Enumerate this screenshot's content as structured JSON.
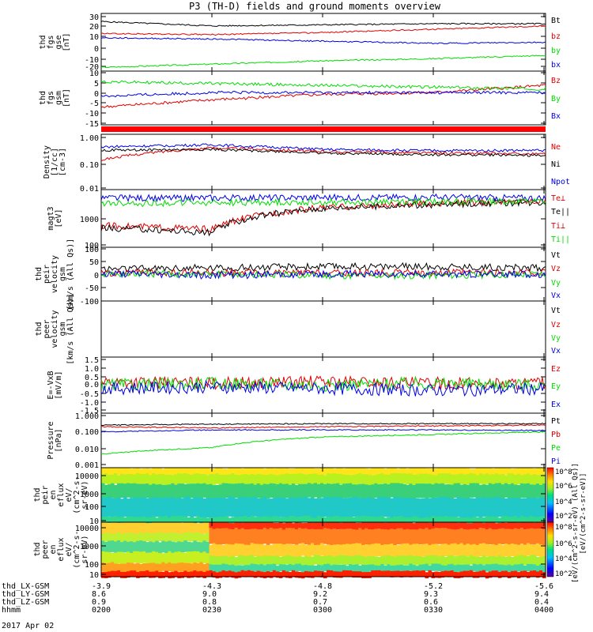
{
  "title": "P3 (TH-D) fields and ground moments overview",
  "colors": {
    "black": "#000000",
    "red": "#e00000",
    "green": "#00dd00",
    "blue": "#0000e6"
  },
  "panels": [
    {
      "id": "p1",
      "ylabel": [
        "thd",
        "fgs",
        "gse",
        "[nT]"
      ],
      "ticks": [
        "30",
        "20",
        "10",
        "0",
        "-10",
        "-20"
      ],
      "legend": [
        {
          "text": "Bt",
          "color": "#000000"
        },
        {
          "text": "bz",
          "color": "#e00000"
        },
        {
          "text": "by",
          "color": "#00dd00"
        },
        {
          "text": "bx",
          "color": "#0000e6"
        }
      ]
    },
    {
      "id": "p2",
      "ylabel": [
        "thd",
        "fgs",
        "gsm",
        "[nT]"
      ],
      "ticks": [
        "10",
        "5",
        "0",
        "-5",
        "-10",
        "-15"
      ],
      "legend": [
        {
          "text": "Bz",
          "color": "#e00000"
        },
        {
          "text": "By",
          "color": "#00dd00"
        },
        {
          "text": "Bx",
          "color": "#0000e6"
        }
      ]
    },
    {
      "id": "p3",
      "ylabel": [
        "Density",
        "[1/cc]",
        "[cm-3]"
      ],
      "ticks": [
        "1.00",
        "0.10",
        "0.01"
      ],
      "legend": [
        {
          "text": "Ne",
          "color": "#e00000"
        },
        {
          "text": "Ni",
          "color": "#000000"
        },
        {
          "text": "Npot",
          "color": "#0000e6"
        }
      ]
    },
    {
      "id": "p4",
      "ylabel": [
        "magt3",
        "[eV]"
      ],
      "ticks": [
        "1000",
        "100"
      ],
      "legend": [
        {
          "text": "Te⊥",
          "color": "#e00000"
        },
        {
          "text": "Te||",
          "color": "#000000"
        },
        {
          "text": "Ti⊥",
          "color": "#e00000"
        },
        {
          "text": "Ti||",
          "color": "#00dd00"
        }
      ]
    },
    {
      "id": "p5",
      "ylabel": [
        "thd",
        "peir",
        "velocity",
        "gsm",
        "[km/s (All Qs)]"
      ],
      "ticks": [
        "100",
        "50",
        "0",
        "-50",
        "-100"
      ],
      "legend": [
        {
          "text": "Vt",
          "color": "#000000"
        },
        {
          "text": "Vz",
          "color": "#e00000"
        },
        {
          "text": "Vy",
          "color": "#00dd00"
        },
        {
          "text": "Vx",
          "color": "#0000e6"
        }
      ]
    },
    {
      "id": "p6",
      "ylabel": [
        "thd",
        "peer",
        "velocity",
        "gsm",
        "[km/s (All Qs)]"
      ],
      "ticks": [],
      "legend": [
        {
          "text": "Vt",
          "color": "#000000"
        },
        {
          "text": "Vz",
          "color": "#e00000"
        },
        {
          "text": "Vy",
          "color": "#00dd00"
        },
        {
          "text": "Vx",
          "color": "#0000e6"
        }
      ]
    },
    {
      "id": "p7",
      "ylabel": [
        "E=-VxB",
        "[mV/m]"
      ],
      "ticks": [
        "1.5",
        "1.0",
        "0.5",
        "0.0",
        "-0.5",
        "-1.0",
        "-1.5"
      ],
      "legend": [
        {
          "text": "Ez",
          "color": "#e00000"
        },
        {
          "text": "Ey",
          "color": "#00dd00"
        },
        {
          "text": "Ex",
          "color": "#0000e6"
        }
      ]
    },
    {
      "id": "p8",
      "ylabel": [
        "Pressure",
        "[nPa]"
      ],
      "ticks": [
        "1.000",
        "0.100",
        "0.010",
        "0.001"
      ],
      "legend": [
        {
          "text": "Pt",
          "color": "#000000"
        },
        {
          "text": "Pb",
          "color": "#e00000"
        },
        {
          "text": "Pe",
          "color": "#00dd00"
        },
        {
          "text": "Pi",
          "color": "#0000e6"
        }
      ]
    },
    {
      "id": "p9",
      "ylabel": [
        "thd",
        "peir",
        "en",
        "eflux",
        "eV/",
        "(cm^2-s-",
        "sr-eV)"
      ],
      "ticks": [
        "10000",
        "1000",
        "100",
        "10"
      ],
      "legend": []
    },
    {
      "id": "p10",
      "ylabel": [
        "thd",
        "peer",
        "en",
        "eflux",
        "eV/",
        "(cm^2-s-",
        "sr-eV)"
      ],
      "ticks": [
        "10000",
        "1000",
        "100",
        "10"
      ],
      "legend": []
    }
  ],
  "colorbar": {
    "ticks1": [
      "10^8",
      "10^6",
      "10^4",
      "10^2"
    ],
    "ticks2": [
      "10^8",
      "10^6",
      "10^4",
      "10^2"
    ],
    "label1": "[eV/(cm^2-s-sr-eV)]",
    "label2": "[eV/(cm^2-s-sr-eV) (All Qs)]"
  },
  "xaxis": {
    "rows": [
      {
        "label": "thd_LX-GSM",
        "values": [
          "-3.9",
          "-4.3",
          "-4.8",
          "-5.2",
          "-5.6"
        ]
      },
      {
        "label": "thd_LY-GSM",
        "values": [
          "8.6",
          "9.0",
          "9.2",
          "9.3",
          "9.4"
        ]
      },
      {
        "label": "thd_LZ-GSM",
        "values": [
          "0.9",
          "0.8",
          "0.7",
          "0.6",
          "0.4"
        ]
      },
      {
        "label": "hhmm",
        "values": [
          "0200",
          "0230",
          "0300",
          "0330",
          "0400"
        ]
      }
    ],
    "date": "2017 Apr 02"
  },
  "chart_data": {
    "type": "line",
    "title": "P3 (TH-D) fields and ground moments overview",
    "x": [
      "0200",
      "0230",
      "0300",
      "0330",
      "0400"
    ],
    "xlabel": "hhmm",
    "series": [
      {
        "panel": "p1",
        "name": "Bt",
        "values": [
          24,
          20,
          21,
          22,
          22
        ],
        "ylim": [
          -20,
          30
        ]
      },
      {
        "panel": "p1",
        "name": "bz",
        "values": [
          13,
          12,
          14,
          17,
          20
        ],
        "ylim": [
          -20,
          30
        ]
      },
      {
        "panel": "p1",
        "name": "by",
        "values": [
          -18,
          -15,
          -12,
          -10,
          -7
        ],
        "ylim": [
          -20,
          30
        ]
      },
      {
        "panel": "p1",
        "name": "bx",
        "values": [
          9,
          8,
          6,
          4,
          5
        ],
        "ylim": [
          -20,
          30
        ]
      },
      {
        "panel": "p2",
        "name": "Bz",
        "values": [
          -9,
          -5,
          -2,
          -1,
          3
        ],
        "ylim": [
          -18,
          10
        ]
      },
      {
        "panel": "p2",
        "name": "By",
        "values": [
          5,
          4,
          3,
          2,
          1
        ],
        "ylim": [
          -18,
          10
        ]
      },
      {
        "panel": "p2",
        "name": "Bx",
        "values": [
          -3,
          -1,
          -1,
          -1,
          -1
        ],
        "ylim": [
          -18,
          10
        ]
      },
      {
        "panel": "p3",
        "name": "Ne",
        "values": [
          0.12,
          0.35,
          0.25,
          0.22,
          0.2
        ],
        "ylim": [
          0.01,
          1.0
        ],
        "scale": "log"
      },
      {
        "panel": "p3",
        "name": "Ni",
        "values": [
          0.28,
          0.3,
          0.22,
          0.19,
          0.18
        ],
        "ylim": [
          0.01,
          1.0
        ],
        "scale": "log"
      },
      {
        "panel": "p3",
        "name": "Npot",
        "values": [
          0.38,
          0.45,
          0.3,
          0.27,
          0.28
        ],
        "ylim": [
          0.01,
          1.0
        ],
        "scale": "log"
      },
      {
        "panel": "p4",
        "name": "Te⊥",
        "values": [
          550,
          400,
          2500,
          3500,
          4500
        ],
        "ylim": [
          100,
          10000
        ],
        "scale": "log"
      },
      {
        "panel": "p4",
        "name": "Te||",
        "values": [
          450,
          300,
          2400,
          3200,
          4000
        ],
        "ylim": [
          100,
          10000
        ],
        "scale": "log"
      },
      {
        "panel": "p4",
        "name": "Ti⊥",
        "values": [
          5500,
          5600,
          5800,
          5900,
          5600
        ],
        "ylim": [
          100,
          10000
        ],
        "scale": "log"
      },
      {
        "panel": "p4",
        "name": "Ti||",
        "values": [
          3500,
          3800,
          4000,
          4200,
          4300
        ],
        "ylim": [
          100,
          10000
        ],
        "scale": "log"
      },
      {
        "panel": "p5",
        "name": "Vt",
        "values": [
          20,
          25,
          30,
          30,
          25
        ],
        "ylim": [
          -100,
          100
        ]
      },
      {
        "panel": "p5",
        "name": "Vz",
        "values": [
          5,
          5,
          5,
          5,
          5
        ],
        "ylim": [
          -100,
          100
        ]
      },
      {
        "panel": "p5",
        "name": "Vy",
        "values": [
          0,
          0,
          -5,
          -5,
          0
        ],
        "ylim": [
          -100,
          100
        ]
      },
      {
        "panel": "p5",
        "name": "Vx",
        "values": [
          0,
          -5,
          0,
          0,
          0
        ],
        "ylim": [
          -100,
          100
        ]
      },
      {
        "panel": "p7",
        "name": "Ez",
        "values": [
          0.2,
          0.1,
          0.2,
          0.1,
          0.1
        ],
        "ylim": [
          -1.5,
          1.5
        ]
      },
      {
        "panel": "p7",
        "name": "Ey",
        "values": [
          0.0,
          0.1,
          0.0,
          0.1,
          0.0
        ],
        "ylim": [
          -1.5,
          1.5
        ]
      },
      {
        "panel": "p7",
        "name": "Ex",
        "values": [
          -0.2,
          -0.1,
          -0.2,
          -0.3,
          -0.2
        ],
        "ylim": [
          -1.5,
          1.5
        ]
      },
      {
        "panel": "p8",
        "name": "Pt",
        "values": [
          0.25,
          0.28,
          0.3,
          0.3,
          0.3
        ],
        "ylim": [
          0.001,
          1.0
        ],
        "scale": "log"
      },
      {
        "panel": "p8",
        "name": "Pb",
        "values": [
          0.2,
          0.17,
          0.2,
          0.22,
          0.25
        ],
        "ylim": [
          0.001,
          1.0
        ],
        "scale": "log"
      },
      {
        "panel": "p8",
        "name": "Pe",
        "values": [
          0.005,
          0.012,
          0.05,
          0.07,
          0.1
        ],
        "ylim": [
          0.001,
          1.0
        ],
        "scale": "log"
      },
      {
        "panel": "p8",
        "name": "Pi",
        "values": [
          0.1,
          0.13,
          0.13,
          0.13,
          0.12
        ],
        "ylim": [
          0.001,
          1.0
        ],
        "scale": "log"
      }
    ]
  }
}
